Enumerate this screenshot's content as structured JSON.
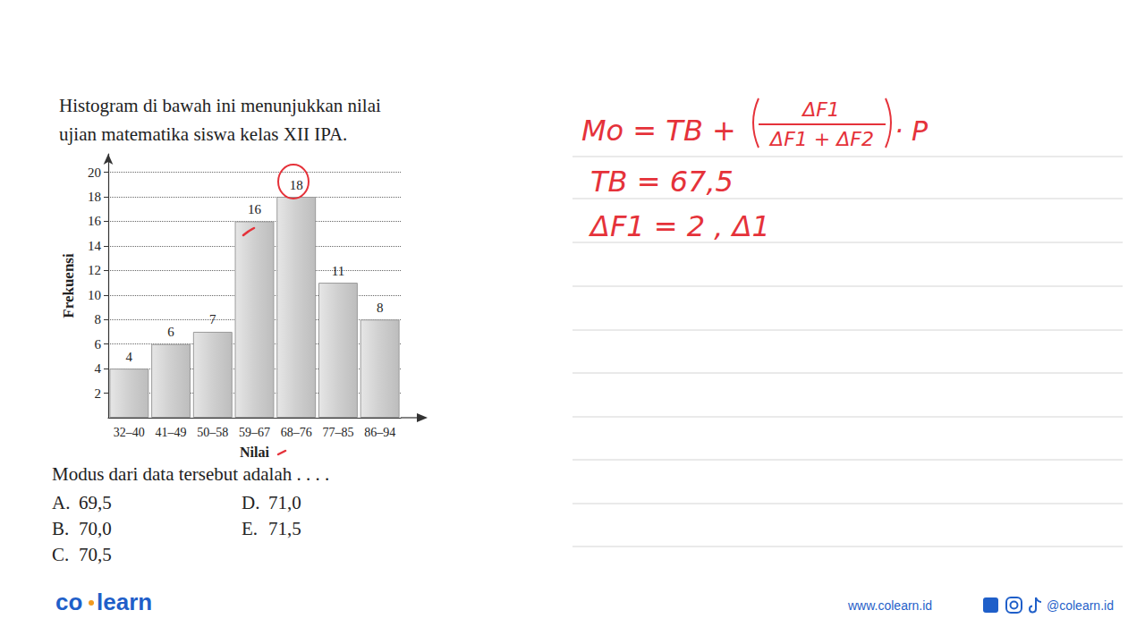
{
  "question": {
    "lines": [
      "Histogram di bawah ini menunjukkan nilai",
      "ujian matematika siswa kelas XII IPA."
    ],
    "prompt": "Modus dari data tersebut adalah . . . .",
    "options": [
      {
        "letter": "A.",
        "text": "69,5"
      },
      {
        "letter": "B.",
        "text": "70,0"
      },
      {
        "letter": "C.",
        "text": "70,5"
      },
      {
        "letter": "D.",
        "text": "71,0"
      },
      {
        "letter": "E.",
        "text": "71,5"
      }
    ]
  },
  "chart_data": {
    "type": "bar",
    "categories": [
      "32–40",
      "41–49",
      "50–58",
      "59–67",
      "68–76",
      "77–85",
      "86–94"
    ],
    "values": [
      4,
      6,
      7,
      16,
      18,
      11,
      8
    ],
    "color": "#cfcfcf",
    "x_label": "Nilai",
    "y_label": "Frekuensi",
    "ylim": [
      0,
      21.5
    ],
    "yticks": [
      2,
      4,
      6,
      8,
      10,
      12,
      14,
      16,
      18,
      20
    ],
    "grid": true,
    "data_labels": true
  },
  "handwriting": {
    "formula": {
      "lhs": "Mo = TB +",
      "numerator": "ΔF1",
      "denominator": "ΔF1 + ΔF2",
      "factor": "· P"
    },
    "lines": [
      "TB = 67,5",
      "ΔF1 = 2 , Δ1"
    ]
  },
  "footer": {
    "logo": [
      "co",
      "learn"
    ],
    "website": "www.colearn.id",
    "social": "@colearn.id"
  }
}
